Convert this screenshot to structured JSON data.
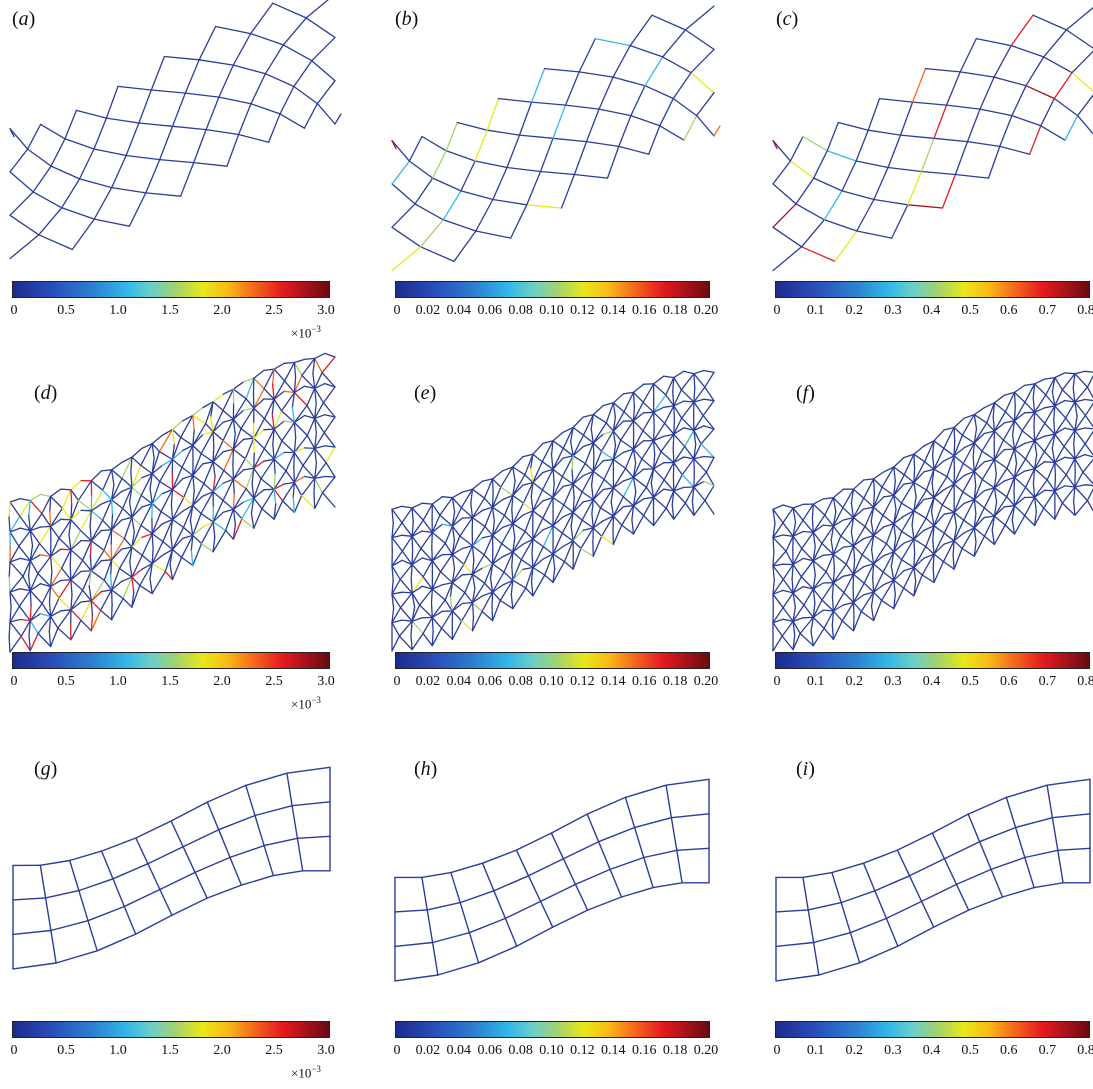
{
  "colors": {
    "mesh": "#2a3d9c"
  },
  "panels": [
    {
      "label": "a",
      "kind": "diamond"
    },
    {
      "label": "b",
      "kind": "diamond"
    },
    {
      "label": "c",
      "kind": "diamond"
    },
    {
      "label": "d",
      "kind": "kagome"
    },
    {
      "label": "e",
      "kind": "kagome"
    },
    {
      "label": "f",
      "kind": "kagome"
    },
    {
      "label": "g",
      "kind": "square"
    },
    {
      "label": "h",
      "kind": "square"
    },
    {
      "label": "i",
      "kind": "square"
    }
  ],
  "colorbars": {
    "col1": {
      "ticks": [
        "0",
        "0.5",
        "1.0",
        "1.5",
        "2.0",
        "2.5",
        "3.0"
      ],
      "multiplier_base": "×10",
      "multiplier_exp": "−3"
    },
    "col2": {
      "ticks": [
        "0",
        "0.02",
        "0.04",
        "0.06",
        "0.08",
        "0.10",
        "0.12",
        "0.14",
        "0.16",
        "0.18",
        "0.20"
      ]
    },
    "col3": {
      "ticks": [
        "0",
        "0.1",
        "0.2",
        "0.3",
        "0.4",
        "0.5",
        "0.6",
        "0.7",
        "0.8"
      ]
    }
  }
}
